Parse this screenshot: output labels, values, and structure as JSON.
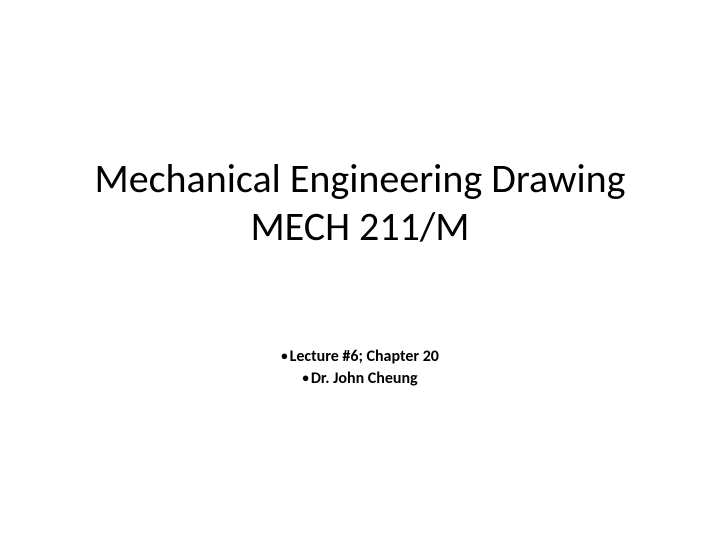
{
  "slide": {
    "title_line1": "Mechanical Engineering Drawing",
    "title_line2": "MECH 211/M",
    "detail_line1": "Lecture #6; Chapter 20",
    "detail_line2": "Dr. John Cheung",
    "title_fontsize": 40,
    "detail_fontsize": 16,
    "text_color": "#000000",
    "background_color": "#ffffff",
    "bullet_char": "•"
  }
}
